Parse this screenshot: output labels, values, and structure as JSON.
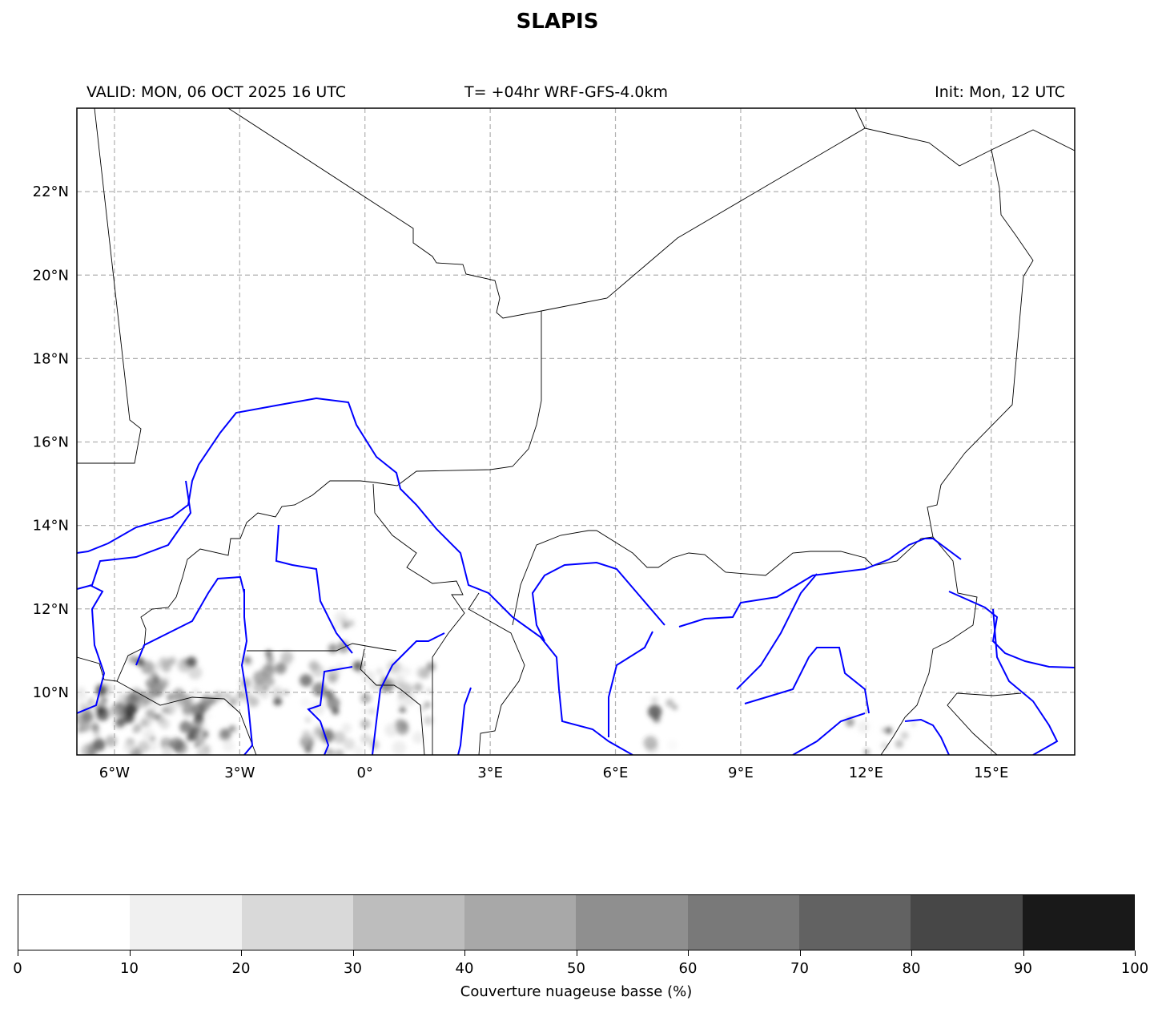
{
  "title": "SLAPIS",
  "header": {
    "valid": "VALID: MON, 06 OCT 2025 16 UTC",
    "model": "T= +04hr WRF-GFS-4.0km",
    "init": "Init: Mon, 12 UTC"
  },
  "map": {
    "extent_lon": [
      -6.9,
      17.0
    ],
    "extent_lat": [
      8.5,
      24.0
    ],
    "lon_ticks": [
      {
        "value": -6,
        "label": "6°W"
      },
      {
        "value": -3,
        "label": "3°W"
      },
      {
        "value": 0,
        "label": "0°"
      },
      {
        "value": 3,
        "label": "3°E"
      },
      {
        "value": 6,
        "label": "6°E"
      },
      {
        "value": 9,
        "label": "9°E"
      },
      {
        "value": 12,
        "label": "12°E"
      },
      {
        "value": 15,
        "label": "15°E"
      }
    ],
    "lat_ticks": [
      {
        "value": 22,
        "label": "22°N"
      },
      {
        "value": 20,
        "label": "20°N"
      },
      {
        "value": 18,
        "label": "18°N"
      },
      {
        "value": 16,
        "label": "16°N"
      },
      {
        "value": 14,
        "label": "14°N"
      },
      {
        "value": 12,
        "label": "12°N"
      },
      {
        "value": 10,
        "label": "10°N"
      }
    ],
    "gridlines": true,
    "border_color": "#000000",
    "river_color": "#0000ff",
    "grid_color": "#b0b0b0"
  },
  "colorbar": {
    "label": "Couverture nuageuse basse (%)",
    "ticks": [
      "0",
      "10",
      "20",
      "30",
      "40",
      "50",
      "60",
      "70",
      "80",
      "90",
      "100"
    ],
    "colors": [
      "#ffffff",
      "#f0f0f0",
      "#d9d9d9",
      "#bdbdbd",
      "#a8a8a8",
      "#8f8f8f",
      "#797979",
      "#626262",
      "#474747",
      "#191919"
    ]
  }
}
